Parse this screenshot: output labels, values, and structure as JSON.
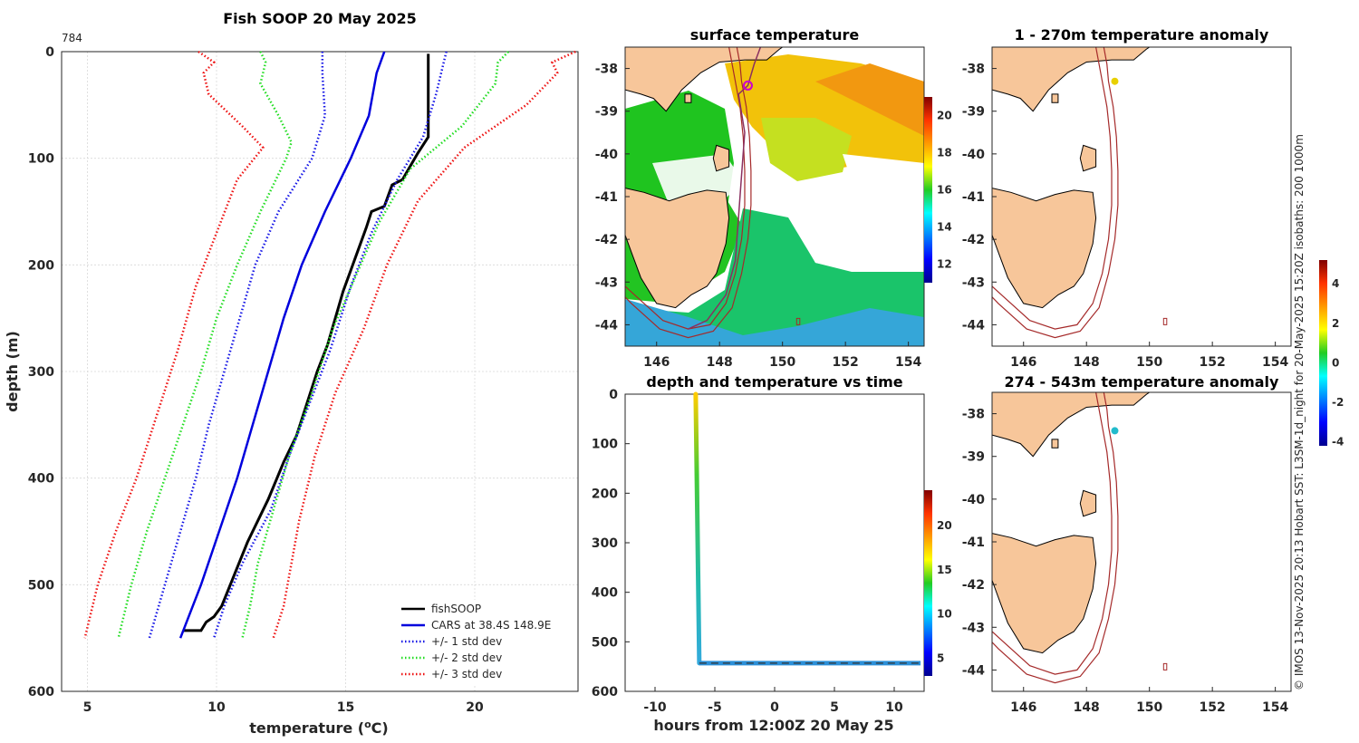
{
  "colors": {
    "fishsoop": "#000000",
    "cars": "#0000dd",
    "std1": "#1515e6",
    "std2": "#22dd22",
    "std3": "#ee1111",
    "land": "#f7c69a",
    "isobath": "#a52a2a",
    "track": "#8a3060",
    "marker": "#cc00cc"
  },
  "chart_data": [
    {
      "type": "line",
      "id": "profile",
      "title": "Fish SOOP 20 May 2025",
      "corner_label": "784",
      "xlabel": "temperature (",
      "xlabel_sup": "o",
      "xlabel_tail": "C)",
      "ylabel": "depth (m)",
      "xlim": [
        4,
        24
      ],
      "ylim": [
        0,
        600
      ],
      "xticks": [
        5,
        10,
        15,
        20
      ],
      "yticks": [
        0,
        100,
        200,
        300,
        400,
        500,
        600
      ],
      "legend_position": "bottom-right",
      "series": [
        {
          "name": "fishSOOP",
          "style": "solid",
          "color_key": "fishsoop",
          "points": [
            [
              18.2,
              2
            ],
            [
              18.2,
              80
            ],
            [
              17.8,
              95
            ],
            [
              17.2,
              120
            ],
            [
              16.8,
              125
            ],
            [
              16.5,
              145
            ],
            [
              16.0,
              150
            ],
            [
              15.8,
              165
            ],
            [
              15.5,
              185
            ],
            [
              15.2,
              205
            ],
            [
              14.9,
              225
            ],
            [
              14.6,
              250
            ],
            [
              14.3,
              275
            ],
            [
              13.9,
              300
            ],
            [
              13.5,
              330
            ],
            [
              13.1,
              360
            ],
            [
              12.6,
              385
            ],
            [
              12.0,
              420
            ],
            [
              11.2,
              460
            ],
            [
              10.2,
              520
            ],
            [
              9.9,
              530
            ],
            [
              9.6,
              535
            ],
            [
              9.4,
              543
            ],
            [
              8.7,
              543
            ]
          ]
        },
        {
          "name": "CARS at 38.4S 148.9E",
          "style": "solid",
          "color_key": "cars",
          "points": [
            [
              16.5,
              0
            ],
            [
              16.2,
              20
            ],
            [
              15.9,
              60
            ],
            [
              15.2,
              100
            ],
            [
              14.2,
              150
            ],
            [
              13.3,
              200
            ],
            [
              12.6,
              250
            ],
            [
              12.0,
              300
            ],
            [
              11.4,
              350
            ],
            [
              10.8,
              400
            ],
            [
              10.1,
              450
            ],
            [
              9.4,
              500
            ],
            [
              8.6,
              550
            ]
          ]
        },
        {
          "name": "+/- 1 std dev",
          "style": "dotted",
          "color_key": "std1",
          "points": [
            [
              18.9,
              0
            ],
            [
              18.5,
              40
            ],
            [
              18.0,
              80
            ],
            [
              17.0,
              120
            ],
            [
              16.0,
              170
            ],
            [
              15.2,
              220
            ],
            [
              14.4,
              280
            ],
            [
              13.6,
              330
            ],
            [
              12.8,
              380
            ],
            [
              12.1,
              430
            ],
            [
              11.0,
              480
            ],
            [
              10.3,
              520
            ],
            [
              9.9,
              550
            ]
          ]
        },
        {
          "name": "+/- 1 std dev",
          "style": "dotted",
          "color_key": "std1",
          "nolegend": true,
          "points": [
            [
              14.1,
              0
            ],
            [
              14.1,
              20
            ],
            [
              14.2,
              60
            ],
            [
              13.7,
              100
            ],
            [
              12.4,
              150
            ],
            [
              11.5,
              200
            ],
            [
              10.9,
              250
            ],
            [
              10.3,
              300
            ],
            [
              9.7,
              350
            ],
            [
              9.2,
              400
            ],
            [
              8.6,
              450
            ],
            [
              8.0,
              500
            ],
            [
              7.4,
              550
            ]
          ]
        },
        {
          "name": "+/- 2 std dev",
          "style": "dotted",
          "color_key": "std2",
          "points": [
            [
              21.3,
              0
            ],
            [
              20.9,
              10
            ],
            [
              20.8,
              30
            ],
            [
              19.5,
              70
            ],
            [
              17.5,
              110
            ],
            [
              16.3,
              160
            ],
            [
              15.4,
              210
            ],
            [
              14.5,
              260
            ],
            [
              13.7,
              320
            ],
            [
              12.8,
              380
            ],
            [
              12.2,
              430
            ],
            [
              11.6,
              480
            ],
            [
              11.3,
              520
            ],
            [
              11.0,
              550
            ]
          ]
        },
        {
          "name": "+/- 2 std dev",
          "style": "dotted",
          "color_key": "std2",
          "nolegend": true,
          "points": [
            [
              11.7,
              0
            ],
            [
              11.9,
              10
            ],
            [
              11.7,
              30
            ],
            [
              12.4,
              60
            ],
            [
              12.9,
              85
            ],
            [
              12.7,
              100
            ],
            [
              11.7,
              150
            ],
            [
              10.8,
              200
            ],
            [
              10.0,
              250
            ],
            [
              9.4,
              300
            ],
            [
              8.7,
              350
            ],
            [
              8.0,
              400
            ],
            [
              7.3,
              450
            ],
            [
              6.7,
              500
            ],
            [
              6.2,
              550
            ]
          ]
        },
        {
          "name": "+/- 3 std dev",
          "style": "dotted",
          "color_key": "std3",
          "points": [
            [
              23.9,
              0
            ],
            [
              23.0,
              10
            ],
            [
              23.2,
              20
            ],
            [
              22.0,
              50
            ],
            [
              19.6,
              90
            ],
            [
              17.8,
              140
            ],
            [
              16.6,
              200
            ],
            [
              15.7,
              260
            ],
            [
              14.6,
              320
            ],
            [
              13.8,
              380
            ],
            [
              13.2,
              440
            ],
            [
              12.9,
              480
            ],
            [
              12.6,
              520
            ],
            [
              12.2,
              550
            ]
          ]
        },
        {
          "name": "+/- 3 std dev",
          "style": "dotted",
          "color_key": "std3",
          "nolegend": true,
          "points": [
            [
              9.3,
              0
            ],
            [
              9.9,
              10
            ],
            [
              9.5,
              20
            ],
            [
              9.7,
              40
            ],
            [
              11.0,
              70
            ],
            [
              11.8,
              90
            ],
            [
              10.8,
              120
            ],
            [
              10.0,
              170
            ],
            [
              9.2,
              220
            ],
            [
              8.5,
              280
            ],
            [
              7.7,
              340
            ],
            [
              6.9,
              400
            ],
            [
              6.1,
              450
            ],
            [
              5.4,
              500
            ],
            [
              4.9,
              550
            ]
          ]
        }
      ]
    },
    {
      "type": "heatmap",
      "id": "sst_map",
      "title": "surface temperature",
      "xlim": [
        145,
        154.5
      ],
      "ylim": [
        -44.5,
        -37.5
      ],
      "xticks": [
        146,
        148,
        150,
        152,
        154
      ],
      "yticks": [
        -38,
        -39,
        -40,
        -41,
        -42,
        -43,
        -44
      ],
      "colorbar": {
        "min": 11,
        "max": 21,
        "ticks": [
          12,
          14,
          16,
          18,
          20
        ]
      },
      "marker": {
        "lon": 148.9,
        "lat": -38.4
      }
    },
    {
      "type": "scatter",
      "id": "depth_time",
      "title": "depth and temperature vs time",
      "xlabel": "hours from 12:00Z 20 May 25",
      "xlim": [
        -12.5,
        12.5
      ],
      "ylim": [
        0,
        600
      ],
      "xticks": [
        -10,
        -5,
        0,
        5,
        10
      ],
      "yticks": [
        0,
        100,
        200,
        300,
        400,
        500,
        600
      ],
      "colorbar": {
        "min": 3,
        "max": 24,
        "ticks": [
          5,
          10,
          15,
          20
        ]
      },
      "descent": {
        "time_start": -6.6,
        "time_end": -6.3,
        "depth_max": 543
      },
      "bottom": {
        "time_start": -6.3,
        "time_end": 12.2,
        "depth": 543,
        "temperature": 8.5
      }
    },
    {
      "type": "heatmap",
      "id": "anomaly_shallow",
      "title": "1 - 270m temperature anomaly",
      "xlim": [
        145,
        154.5
      ],
      "ylim": [
        -44.5,
        -37.5
      ],
      "xticks": [
        146,
        148,
        150,
        152,
        154
      ],
      "yticks": [
        -38,
        -39,
        -40,
        -41,
        -42,
        -43,
        -44
      ],
      "marker": {
        "lon": 148.9,
        "lat": -38.3,
        "anomaly": 1.8
      }
    },
    {
      "type": "heatmap",
      "id": "anomaly_deep",
      "title": "274 - 543m temperature anomaly",
      "xlim": [
        145,
        154.5
      ],
      "ylim": [
        -44.5,
        -37.5
      ],
      "xticks": [
        146,
        148,
        150,
        152,
        154
      ],
      "yticks": [
        -38,
        -39,
        -40,
        -41,
        -42,
        -43,
        -44
      ],
      "marker": {
        "lon": 148.9,
        "lat": -38.4,
        "anomaly": 0.2
      }
    },
    {
      "type": "heatmap",
      "id": "anomaly_colorbar",
      "colorbar": {
        "min": -4.2,
        "max": 5.2,
        "ticks": [
          4,
          2,
          0,
          -2,
          -4
        ]
      }
    }
  ],
  "credit": "© IMOS 13-Nov-2025 20:13 Hobart SST: L3SM-1d_night for 20-May-2025 15:20Z isobaths: 200  1000m"
}
